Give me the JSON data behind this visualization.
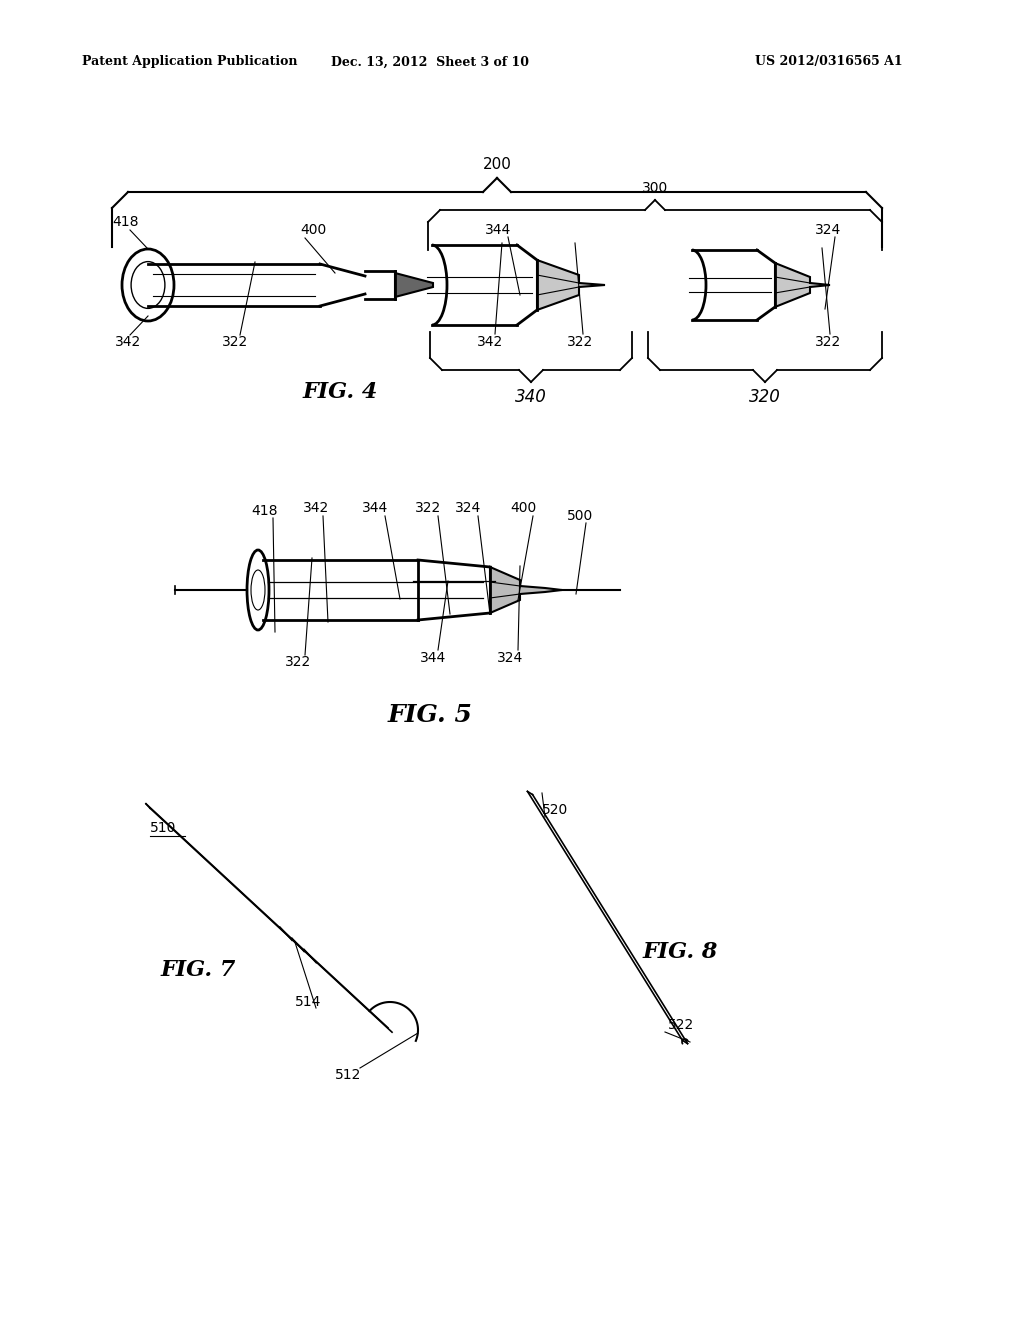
{
  "background_color": "#ffffff",
  "header_left": "Patent Application Publication",
  "header_center": "Dec. 13, 2012  Sheet 3 of 10",
  "header_right": "US 2012/0316565 A1",
  "text_color": "#000000",
  "line_color": "#000000",
  "fig4_label": "FIG. 4",
  "fig5_label": "FIG. 5",
  "fig7_label": "FIG. 7",
  "fig8_label": "FIG. 8",
  "label_200": "200",
  "label_300": "300",
  "label_340": "340",
  "label_320": "320",
  "label_418_f4": "418",
  "label_400_f4": "400",
  "label_342_f4a": "342",
  "label_322_f4a": "322",
  "label_344_f4b": "344",
  "label_342_f4b": "342",
  "label_322_f4b": "322",
  "label_324_f4c": "324",
  "label_322_f4c": "322",
  "label_418_f5": "418",
  "label_342_f5a": "342",
  "label_344_f5a": "344",
  "label_322_f5a": "322",
  "label_324_f5a": "324",
  "label_400_f5": "400",
  "label_500_f5": "500",
  "label_322_f5b": "322",
  "label_344_f5b": "344",
  "label_324_f5b": "324",
  "label_510": "510",
  "label_514": "514",
  "label_512": "512",
  "label_520": "520",
  "label_522": "522"
}
